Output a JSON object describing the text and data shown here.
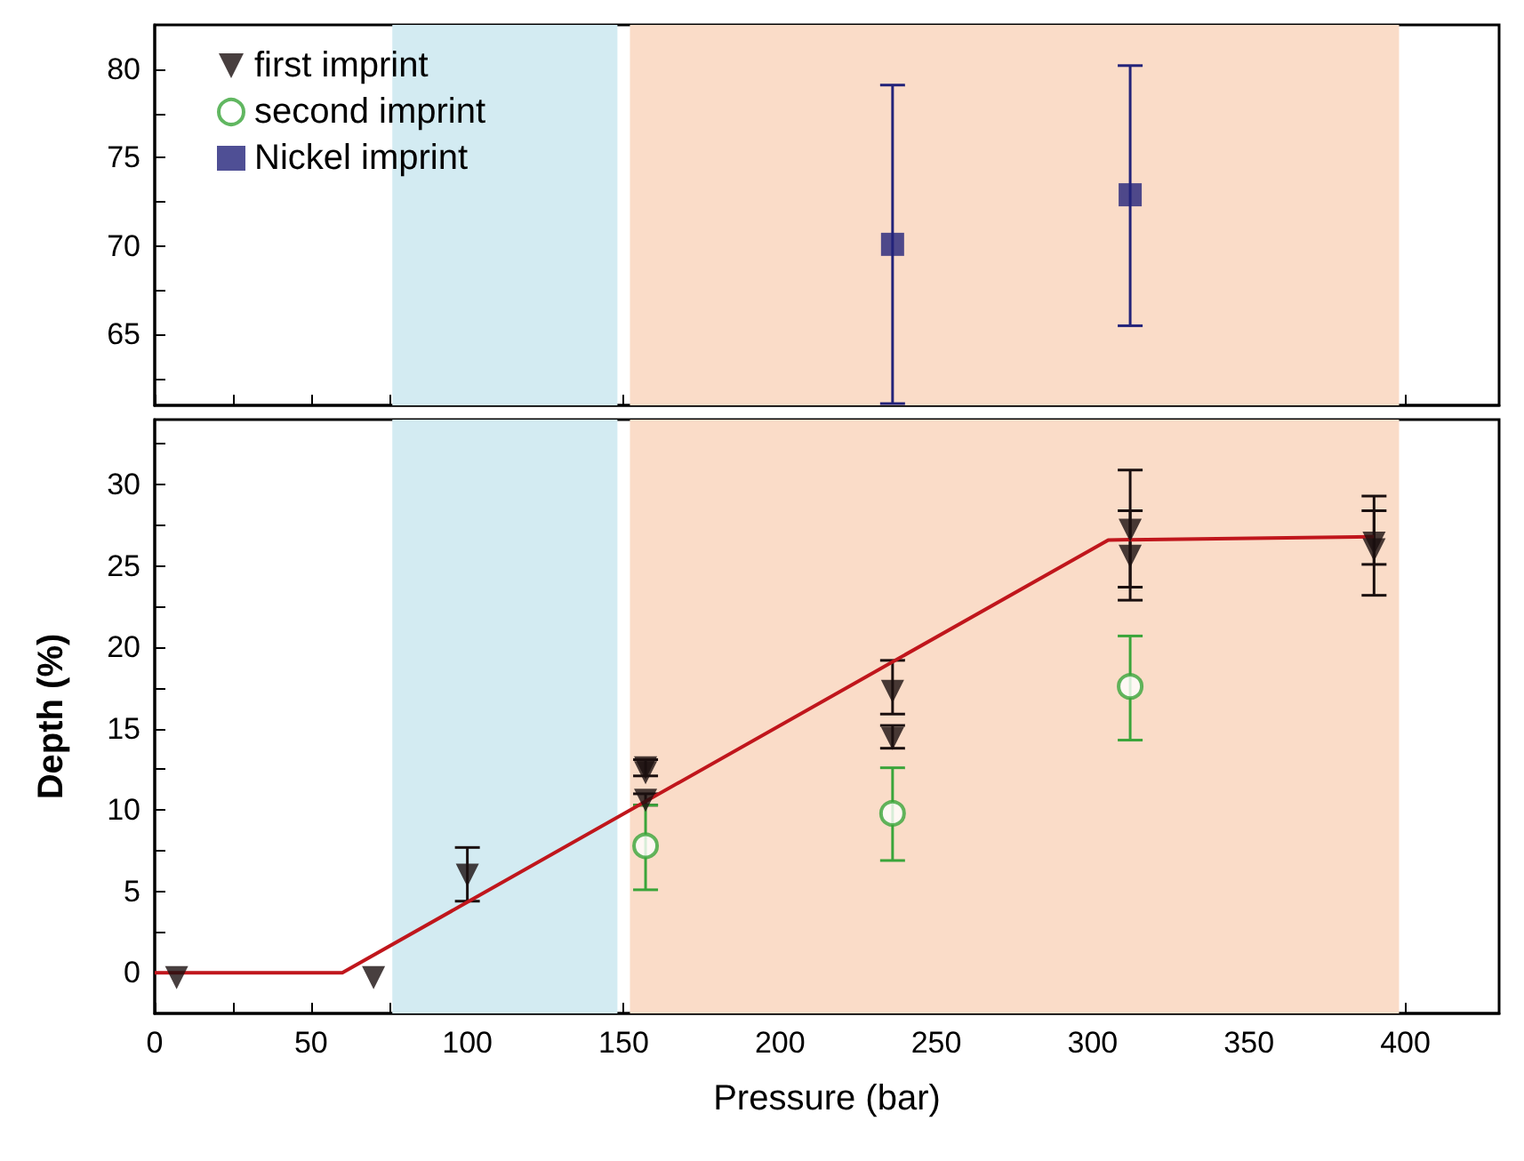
{
  "chart_data": [
    {
      "type": "scatter",
      "xlim": [
        0,
        430
      ],
      "xticks": [
        0,
        {
          "value": 25,
          "label": null
        },
        50,
        {
          "value": 75,
          "label": null
        },
        100,
        {
          "value": 125,
          "label": null
        },
        150,
        {
          "value": 175,
          "label": null
        },
        200,
        {
          "value": 225,
          "label": null
        },
        250,
        {
          "value": 275,
          "label": null
        },
        300,
        {
          "value": 325,
          "label": null
        },
        350,
        {
          "value": 375,
          "label": null
        },
        400
      ],
      "ylim": [
        61,
        82.5
      ],
      "yticks": [
        {
          "value": 62.5,
          "label": null
        },
        65,
        {
          "value": 67.5,
          "label": null
        },
        70,
        {
          "value": 72.5,
          "label": null
        },
        75,
        {
          "value": 77.5,
          "label": null
        },
        80
      ],
      "tick_labels": "y",
      "legend": "top left",
      "bands": [
        {
          "axis": "x",
          "from": 76,
          "to": 148,
          "color": "#d3ebf2"
        },
        {
          "axis": "x",
          "from": 152,
          "to": 398,
          "color": "#fadcc8"
        }
      ],
      "series": [
        {
          "name": "first imprint",
          "color": "#1a0f0f",
          "marker": "triangle"
        },
        {
          "name": "second imprint",
          "color": "#3aa53a",
          "marker": "circle"
        },
        {
          "name": "Nickel imprint",
          "color": "#23237a",
          "marker": "square",
          "x": [
            236,
            312
          ],
          "values": [
            70.1,
            72.9
          ],
          "errors": [
            [
              61.1,
              79.1
            ],
            [
              65.5,
              80.2
            ]
          ]
        }
      ]
    },
    {
      "type": "scatter",
      "xlabel": "Pressure (bar)",
      "ylabel": "Depth (%)",
      "xlim": [
        0,
        430
      ],
      "xticks": [
        0,
        {
          "value": 25,
          "label": null
        },
        50,
        {
          "value": 75,
          "label": null
        },
        100,
        {
          "value": 125,
          "label": null
        },
        150,
        {
          "value": 175,
          "label": null
        },
        200,
        {
          "value": 225,
          "label": null
        },
        250,
        {
          "value": 275,
          "label": null
        },
        300,
        {
          "value": 325,
          "label": null
        },
        350,
        {
          "value": 375,
          "label": null
        },
        400
      ],
      "ylim": [
        -2.5,
        34
      ],
      "yticks": [
        0,
        {
          "value": 2.5,
          "label": null
        },
        5,
        {
          "value": 7.5,
          "label": null
        },
        10,
        {
          "value": 12.5,
          "label": null
        },
        15,
        {
          "value": 17.5,
          "label": null
        },
        20,
        {
          "value": 22.5,
          "label": null
        },
        25,
        {
          "value": 27.5,
          "label": null
        },
        30,
        {
          "value": 32.5,
          "label": null
        }
      ],
      "bands": [
        {
          "axis": "x",
          "from": 76,
          "to": 148,
          "color": "#d3ebf2"
        },
        {
          "axis": "x",
          "from": 152,
          "to": 398,
          "color": "#fadcc8"
        }
      ],
      "series": [
        {
          "type": "line",
          "color": "#c0161c",
          "marker": "none",
          "x": [
            0,
            60,
            305,
            390
          ],
          "values": [
            0,
            0,
            26.6,
            26.8
          ]
        },
        {
          "color": "#1a0f0f",
          "marker": "triangle",
          "x": [
            7,
            70,
            100,
            157,
            157,
            157,
            236,
            236,
            312,
            312,
            390,
            390
          ],
          "values": [
            -0.3,
            -0.3,
            6.0,
            12.6,
            12.3,
            10.6,
            17.3,
            14.4,
            27.2,
            25.6,
            26.4,
            26.0
          ],
          "errors": [
            null,
            null,
            [
              4.4,
              7.7
            ],
            [
              12.1,
              13.1
            ],
            null,
            [
              10.3,
              11.0
            ],
            [
              15.9,
              19.2
            ],
            [
              13.8,
              15.2
            ],
            [
              23.7,
              30.9
            ],
            [
              22.9,
              28.4
            ],
            [
              23.2,
              29.3
            ],
            [
              25.1,
              28.4
            ]
          ]
        },
        {
          "color": "#3aa53a",
          "marker": "circle",
          "x": [
            157,
            236,
            312
          ],
          "values": [
            7.8,
            9.8,
            17.6
          ],
          "errors": [
            [
              5.1,
              10.3
            ],
            [
              6.9,
              12.6
            ],
            [
              14.3,
              20.7
            ]
          ]
        }
      ]
    }
  ]
}
